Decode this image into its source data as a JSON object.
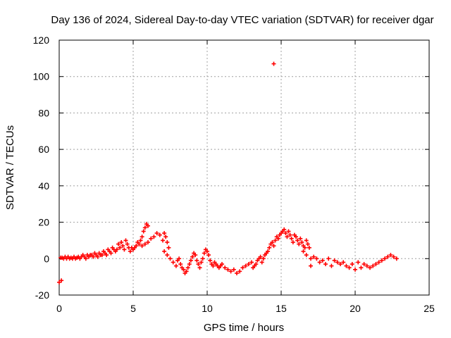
{
  "chart_data": {
    "type": "scatter",
    "title": "Day 136 of 2024, Sidereal Day-to-day VTEC variation (SDTVAR) for receiver dgar",
    "xlabel": "GPS time / hours",
    "ylabel": "SDTVAR / TECUs",
    "xlim": [
      0,
      25
    ],
    "ylim": [
      -20,
      120
    ],
    "xticks": [
      "0",
      "5",
      "10",
      "15",
      "20",
      "25"
    ],
    "yticks": [
      "-20",
      "0",
      "20",
      "40",
      "60",
      "80",
      "100",
      "120"
    ],
    "grid": true,
    "marker": "+",
    "color": "#ff0000",
    "series": [
      {
        "name": "SDTVAR",
        "x": [
          0.0,
          0.1,
          0.15,
          0.2,
          0.3,
          0.4,
          0.5,
          0.6,
          0.7,
          0.8,
          0.9,
          1.0,
          1.1,
          1.2,
          1.3,
          1.4,
          1.5,
          1.6,
          1.7,
          1.8,
          1.9,
          2.0,
          2.1,
          2.2,
          2.3,
          2.4,
          2.5,
          2.6,
          2.7,
          2.8,
          2.9,
          3.0,
          3.1,
          3.2,
          3.3,
          3.4,
          3.5,
          3.6,
          3.7,
          3.8,
          3.9,
          4.0,
          4.1,
          4.2,
          4.3,
          4.4,
          4.5,
          4.6,
          4.7,
          4.8,
          4.9,
          5.0,
          5.1,
          5.2,
          5.3,
          5.4,
          5.5,
          5.6,
          5.7,
          5.8,
          5.9,
          6.0,
          5.6,
          5.8,
          6.0,
          6.2,
          6.4,
          6.6,
          6.8,
          7.0,
          7.1,
          7.2,
          7.3,
          7.4,
          7.1,
          7.3,
          7.5,
          7.7,
          7.9,
          8.0,
          8.1,
          8.2,
          8.3,
          8.4,
          8.5,
          8.6,
          8.7,
          8.8,
          8.9,
          9.0,
          9.1,
          9.2,
          9.3,
          9.4,
          9.5,
          9.6,
          9.7,
          9.8,
          9.9,
          10.0,
          10.1,
          10.2,
          10.3,
          10.4,
          10.5,
          10.6,
          10.7,
          10.8,
          10.9,
          11.0,
          11.2,
          11.4,
          11.6,
          11.8,
          12.0,
          12.2,
          12.4,
          12.6,
          12.8,
          13.0,
          13.1,
          13.2,
          13.3,
          13.4,
          13.5,
          13.6,
          13.7,
          13.8,
          13.9,
          14.0,
          14.1,
          14.2,
          14.3,
          14.4,
          14.5,
          14.6,
          14.7,
          14.8,
          14.9,
          15.0,
          15.1,
          15.2,
          15.3,
          15.4,
          15.5,
          15.6,
          15.7,
          15.8,
          15.9,
          16.0,
          16.1,
          16.2,
          16.3,
          16.4,
          16.5,
          16.6,
          16.7,
          16.8,
          16.9,
          17.0,
          16.5,
          16.7,
          17.0,
          17.2,
          17.4,
          17.6,
          17.8,
          18.0,
          18.2,
          18.4,
          18.6,
          18.8,
          19.0,
          19.2,
          19.4,
          19.6,
          19.8,
          20.0,
          20.2,
          20.4,
          20.6,
          20.8,
          21.0,
          21.2,
          21.4,
          21.6,
          21.8,
          22.0,
          22.2,
          22.4,
          22.6,
          22.8,
          14.5
        ],
        "y": [
          -13,
          0.5,
          -12,
          0.5,
          0,
          1,
          0,
          1,
          0,
          0.5,
          0,
          1,
          0,
          0.5,
          1,
          0,
          1,
          2,
          1,
          0,
          2,
          1,
          2,
          2,
          1,
          3,
          2,
          1,
          3,
          2,
          2,
          4,
          3,
          2,
          5,
          4,
          3,
          6,
          5,
          4,
          5,
          8,
          6,
          9,
          7,
          5,
          10,
          8,
          6,
          4,
          6,
          5,
          6,
          7,
          9,
          8,
          10,
          12,
          15,
          17,
          19,
          18,
          7,
          8,
          9,
          11,
          12,
          14,
          13,
          10,
          14,
          12,
          9,
          6,
          4,
          2,
          0,
          -2,
          -4,
          -1,
          0,
          -3,
          -5,
          -6,
          -8,
          -7,
          -5,
          -3,
          -1,
          1,
          3,
          2,
          -1,
          -3,
          -5,
          -2,
          0,
          3,
          5,
          4,
          2,
          -1,
          -3,
          -4,
          -2,
          -3,
          -4,
          -5,
          -4,
          -3,
          -5,
          -6,
          -7,
          -6,
          -8,
          -7,
          -5,
          -4,
          -3,
          -2,
          -5,
          -4,
          -3,
          -1,
          0,
          1,
          -2,
          0,
          2,
          3,
          4,
          6,
          8,
          9,
          7,
          10,
          12,
          11,
          13,
          14,
          15,
          16,
          14,
          12,
          15,
          13,
          11,
          9,
          13,
          12,
          10,
          8,
          11,
          9,
          7,
          6,
          10,
          8,
          6,
          0,
          4,
          2,
          -4,
          1,
          0,
          -2,
          -1,
          -3,
          0,
          -4,
          -1,
          -2,
          -3,
          -2,
          -4,
          -5,
          -3,
          -6,
          -2,
          -5,
          -3,
          -4,
          -5,
          -4,
          -3,
          -2,
          -1,
          0,
          1,
          2,
          1,
          0,
          107
        ]
      }
    ]
  }
}
